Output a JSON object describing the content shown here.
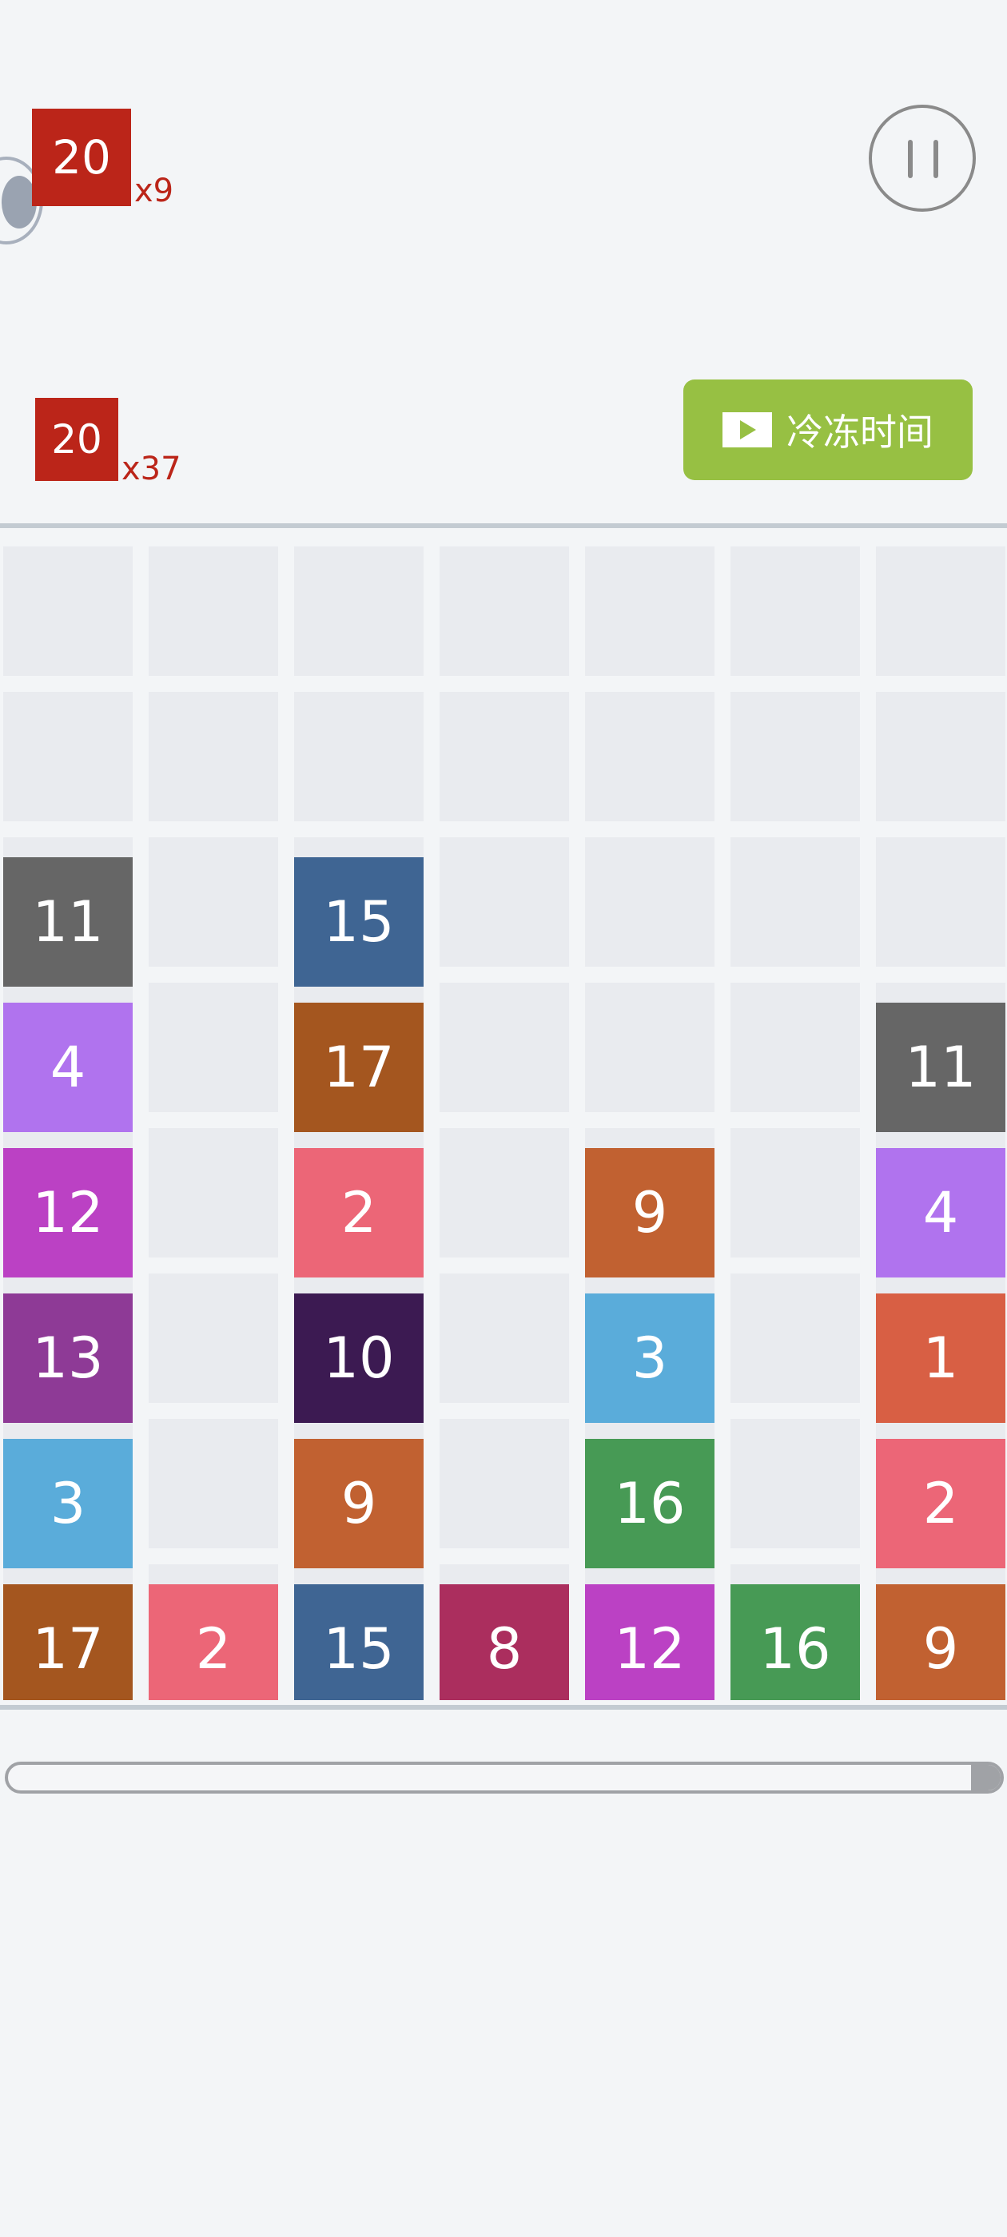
{
  "goals": [
    {
      "value": "20",
      "count": "x9"
    },
    {
      "value": "20",
      "count": "x37"
    }
  ],
  "freeze_button": {
    "label": "冷冻时间",
    "icon": "film-play-icon",
    "color": "#97c043"
  },
  "pause_icon": "pause-icon",
  "goal_color": "#bb2519",
  "board": {
    "columns": 7,
    "rows": 8,
    "tiles": [
      {
        "col": 0,
        "row": 2,
        "value": "11",
        "color": "#666666"
      },
      {
        "col": 0,
        "row": 3,
        "value": "4",
        "color": "#b073ee"
      },
      {
        "col": 0,
        "row": 4,
        "value": "12",
        "color": "#bb41c4"
      },
      {
        "col": 0,
        "row": 5,
        "value": "13",
        "color": "#8e3a96"
      },
      {
        "col": 0,
        "row": 6,
        "value": "3",
        "color": "#5aacda"
      },
      {
        "col": 0,
        "row": 7,
        "value": "17",
        "color": "#a4561f"
      },
      {
        "col": 1,
        "row": 7,
        "value": "2",
        "color": "#ec6677"
      },
      {
        "col": 2,
        "row": 2,
        "value": "15",
        "color": "#3f6593"
      },
      {
        "col": 2,
        "row": 3,
        "value": "17",
        "color": "#a4561f"
      },
      {
        "col": 2,
        "row": 4,
        "value": "2",
        "color": "#ec6677"
      },
      {
        "col": 2,
        "row": 5,
        "value": "10",
        "color": "#3c1a52"
      },
      {
        "col": 2,
        "row": 6,
        "value": "9",
        "color": "#c16131"
      },
      {
        "col": 2,
        "row": 7,
        "value": "15",
        "color": "#3f6593"
      },
      {
        "col": 3,
        "row": 7,
        "value": "8",
        "color": "#ab2e5e"
      },
      {
        "col": 4,
        "row": 4,
        "value": "9",
        "color": "#c16131"
      },
      {
        "col": 4,
        "row": 5,
        "value": "3",
        "color": "#5aacda"
      },
      {
        "col": 4,
        "row": 6,
        "value": "16",
        "color": "#479a55"
      },
      {
        "col": 4,
        "row": 7,
        "value": "12",
        "color": "#bb41c4"
      },
      {
        "col": 5,
        "row": 7,
        "value": "16",
        "color": "#479a55"
      },
      {
        "col": 6,
        "row": 3,
        "value": "11",
        "color": "#666666"
      },
      {
        "col": 6,
        "row": 4,
        "value": "4",
        "color": "#b073ee"
      },
      {
        "col": 6,
        "row": 5,
        "value": "1",
        "color": "#d85f44"
      },
      {
        "col": 6,
        "row": 6,
        "value": "2",
        "color": "#ec6677"
      },
      {
        "col": 6,
        "row": 7,
        "value": "9",
        "color": "#c16131"
      }
    ]
  },
  "progress": {
    "fraction": 0.03
  }
}
